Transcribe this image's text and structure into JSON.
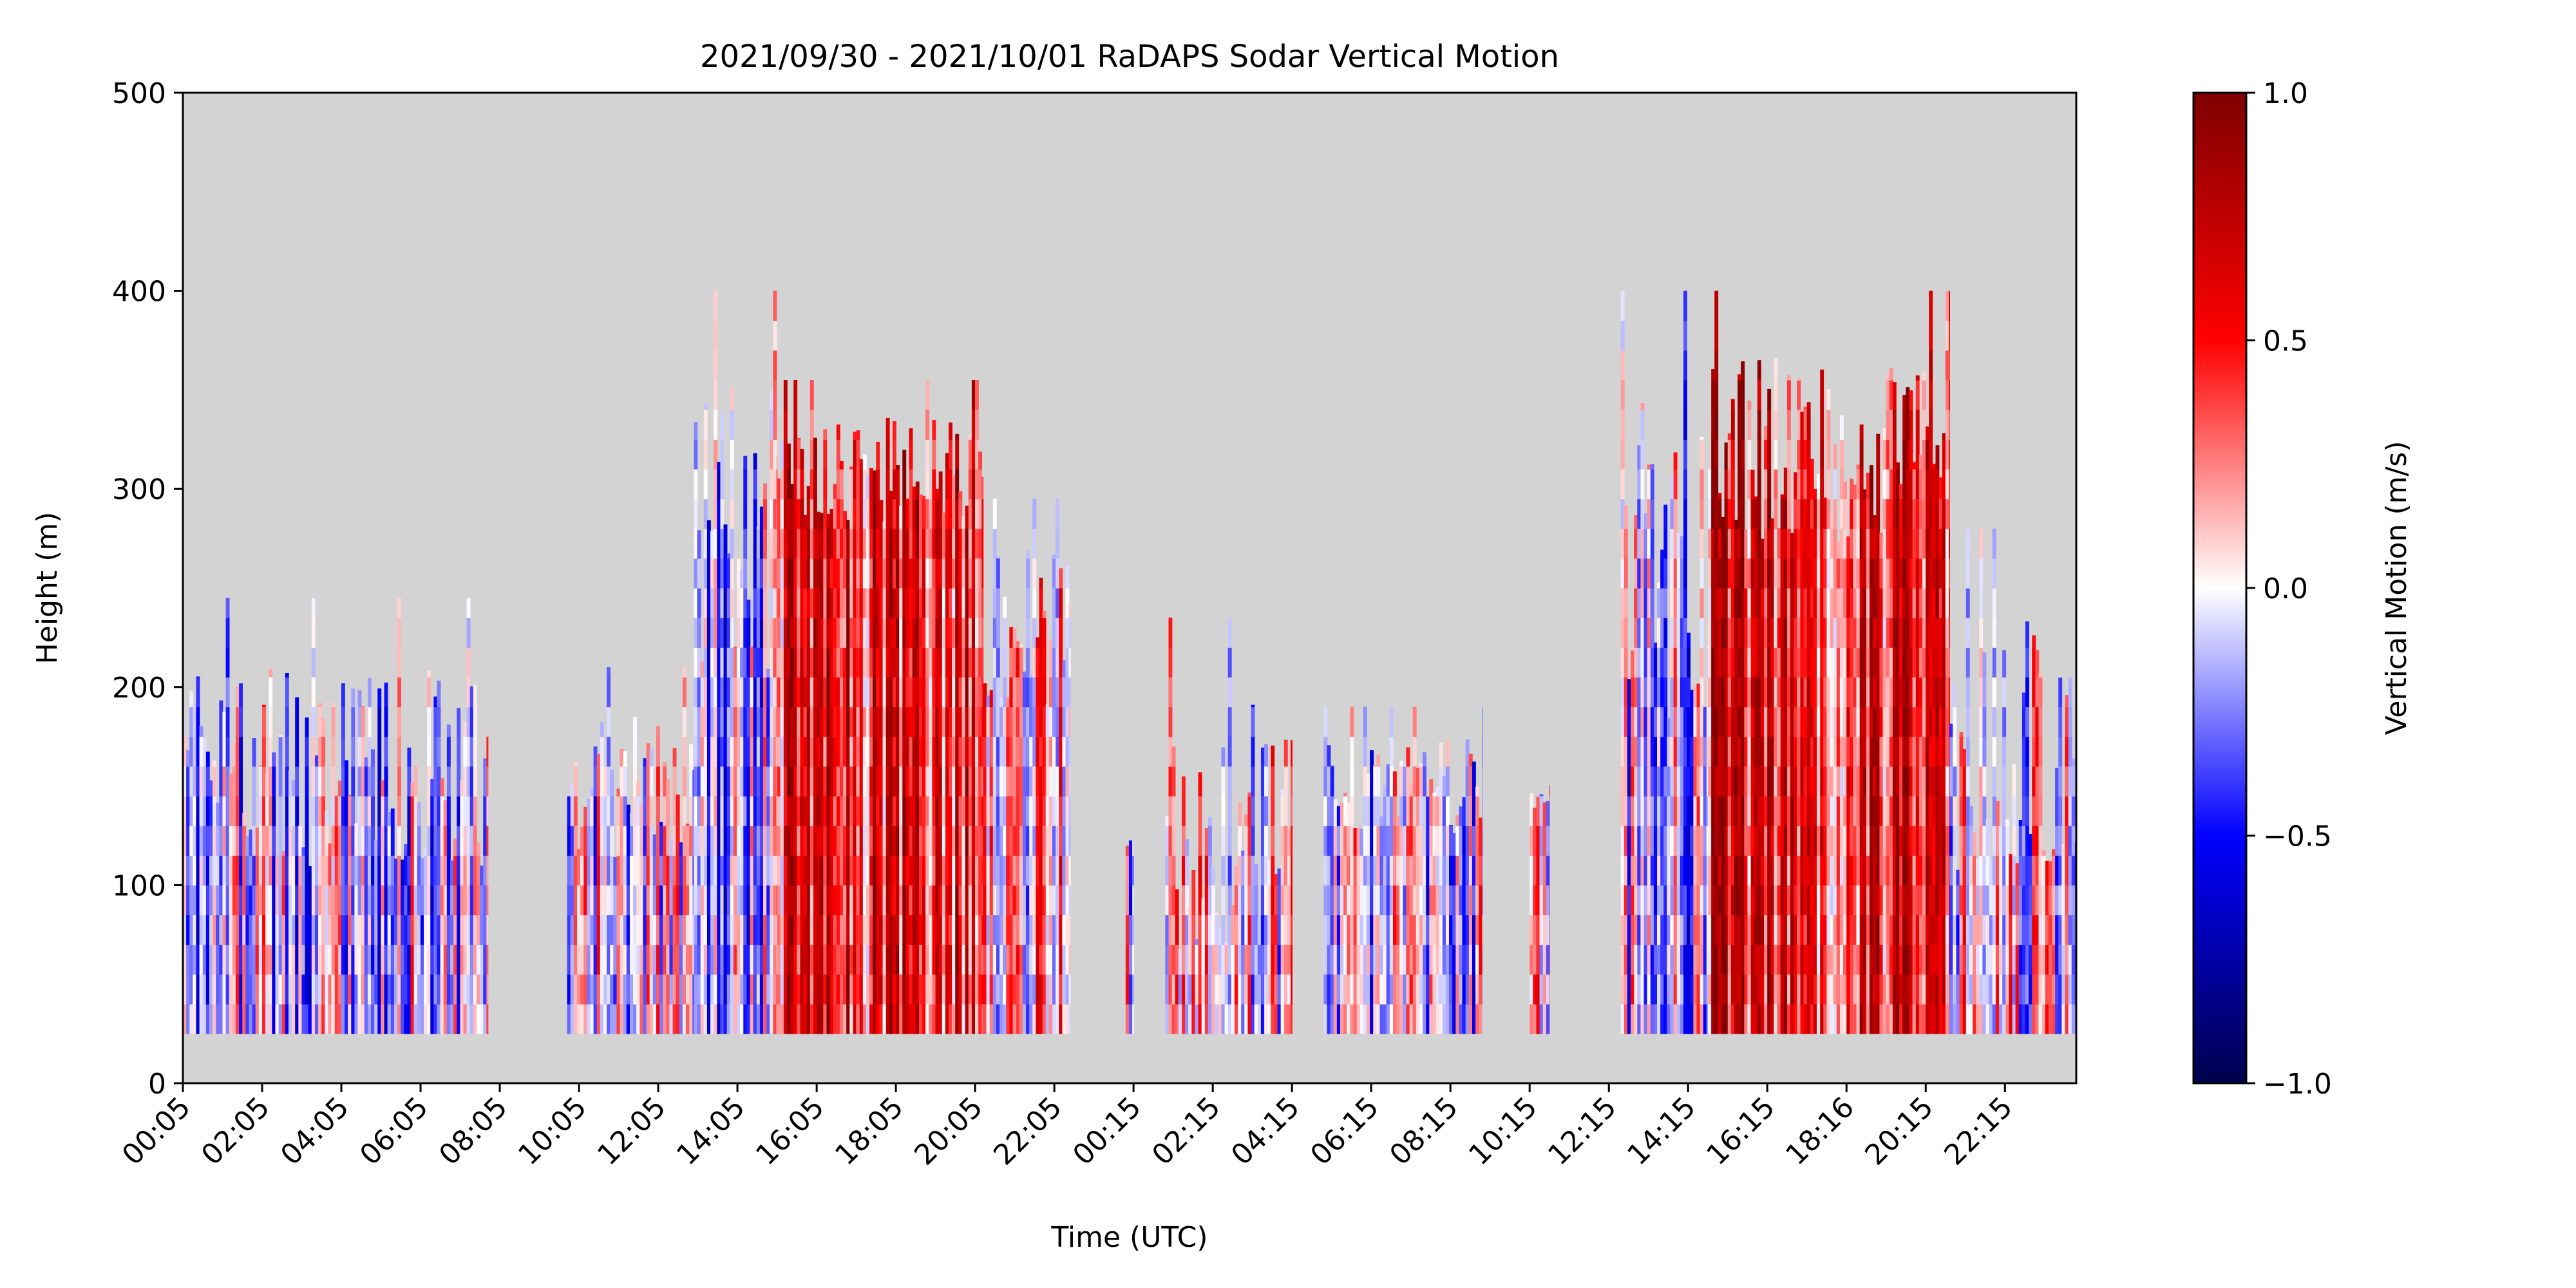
{
  "chart_data": {
    "type": "heatmap",
    "title": "2021/09/30 - 2021/10/01 RaDAPS Sodar Vertical Motion",
    "xlabel": "Time (UTC)",
    "ylabel": "Height (m)",
    "x_tick_labels": [
      "00:05",
      "02:05",
      "04:05",
      "06:05",
      "08:05",
      "10:05",
      "12:05",
      "14:05",
      "16:05",
      "18:05",
      "20:05",
      "22:05",
      "00:15",
      "02:15",
      "04:15",
      "06:15",
      "08:15",
      "10:15",
      "12:15",
      "14:15",
      "16:15",
      "18:16",
      "20:15",
      "22:15"
    ],
    "x_range_hours": [
      0,
      47.8
    ],
    "ylim": [
      0,
      500
    ],
    "y_ticks": [
      0,
      100,
      200,
      300,
      400,
      500
    ],
    "missing_color": "#d3d3d3",
    "colorbar": {
      "label": "Vertical Motion (m/s)",
      "colormap": "seismic",
      "range": [
        -1.0,
        1.0
      ],
      "tick_values": [
        1.0,
        0.5,
        0.0,
        -0.5,
        -1.0
      ],
      "tick_labels": [
        "1.0",
        "0.5",
        "0.0",
        "−0.5",
        "−1.0"
      ]
    },
    "bottom_height_m": 25,
    "segments": [
      {
        "t_start": 0.0,
        "t_end": 7.7,
        "typical_top_m": 160,
        "max_top_m": 245,
        "mean_motion": -0.1
      },
      {
        "t_start": 9.7,
        "t_end": 12.9,
        "typical_top_m": 150,
        "max_top_m": 210,
        "mean_motion": -0.05
      },
      {
        "t_start": 12.9,
        "t_end": 15.0,
        "typical_top_m": 280,
        "max_top_m": 400,
        "mean_motion": -0.15
      },
      {
        "t_start": 15.0,
        "t_end": 20.2,
        "typical_top_m": 310,
        "max_top_m": 355,
        "mean_motion": 0.45
      },
      {
        "t_start": 20.2,
        "t_end": 22.4,
        "typical_top_m": 230,
        "max_top_m": 295,
        "mean_motion": 0.15
      },
      {
        "t_start": 23.8,
        "t_end": 24.0,
        "typical_top_m": 120,
        "max_top_m": 130,
        "mean_motion": -0.1
      },
      {
        "t_start": 24.8,
        "t_end": 28.0,
        "typical_top_m": 130,
        "max_top_m": 235,
        "mean_motion": 0.05
      },
      {
        "t_start": 28.8,
        "t_end": 32.8,
        "typical_top_m": 150,
        "max_top_m": 190,
        "mean_motion": -0.05
      },
      {
        "t_start": 34.0,
        "t_end": 34.5,
        "typical_top_m": 140,
        "max_top_m": 160,
        "mean_motion": 0.1
      },
      {
        "t_start": 36.3,
        "t_end": 38.5,
        "typical_top_m": 260,
        "max_top_m": 400,
        "mean_motion": -0.1
      },
      {
        "t_start": 38.5,
        "t_end": 44.6,
        "typical_top_m": 320,
        "max_top_m": 400,
        "mean_motion": 0.5
      },
      {
        "t_start": 44.6,
        "t_end": 47.8,
        "typical_top_m": 170,
        "max_top_m": 280,
        "mean_motion": 0.05
      }
    ]
  }
}
